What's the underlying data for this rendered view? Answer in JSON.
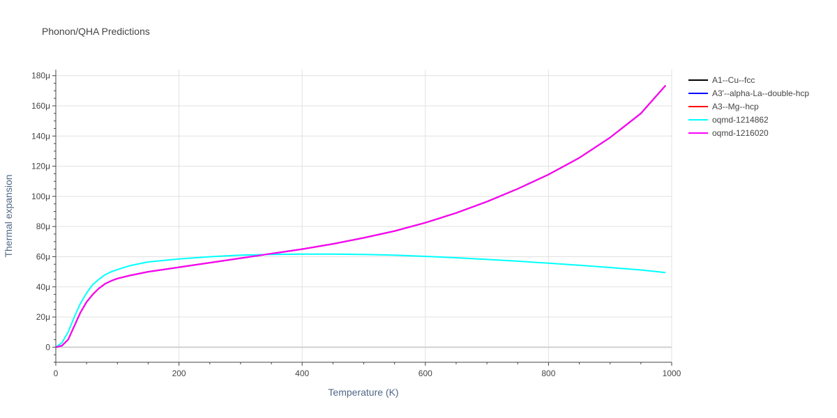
{
  "chart_data": {
    "type": "line",
    "title": "Phonon/QHA Predictions",
    "xlabel": "Temperature (K)",
    "ylabel": "Thermal expansion",
    "xlim": [
      0,
      1000
    ],
    "ylim": [
      -10,
      184
    ],
    "x_ticks": [
      "0",
      "200",
      "400",
      "600",
      "800",
      "1000"
    ],
    "y_ticks": [
      "0",
      "20μ",
      "40μ",
      "60μ",
      "80μ",
      "100μ",
      "120μ",
      "140μ",
      "160μ",
      "180μ"
    ],
    "grid": true,
    "legend_position": "right",
    "series": [
      {
        "name": "A1--Cu--fcc",
        "color": "#000000",
        "x": [
          0,
          10,
          20,
          30,
          40,
          50,
          60,
          70,
          80,
          90,
          100,
          120,
          150,
          200,
          250,
          300,
          350,
          400,
          450,
          500,
          550,
          600,
          650,
          700,
          750,
          800,
          850,
          900,
          950,
          990
        ],
        "y": [
          0,
          1,
          5,
          14,
          23,
          30,
          35,
          39,
          42,
          44,
          45.5,
          47.5,
          50,
          53,
          56,
          59,
          62,
          65,
          68.5,
          72.5,
          77,
          82.5,
          89,
          96.5,
          105,
          114.5,
          125.5,
          139,
          155,
          173.5
        ]
      },
      {
        "name": "A3'--alpha-La--double-hcp",
        "color": "#0000ff",
        "x": [
          0,
          10,
          20,
          30,
          40,
          50,
          60,
          70,
          80,
          90,
          100,
          120,
          150,
          200,
          250,
          300,
          350,
          400,
          450,
          500,
          550,
          600,
          650,
          700,
          750,
          800,
          850,
          900,
          950,
          990
        ],
        "y": [
          0,
          1,
          5,
          14,
          23,
          30,
          35,
          39,
          42,
          44,
          45.5,
          47.5,
          50,
          53,
          56,
          59,
          62,
          65,
          68.5,
          72.5,
          77,
          82.5,
          89,
          96.5,
          105,
          114.5,
          125.5,
          139,
          155,
          173.5
        ]
      },
      {
        "name": "A3--Mg--hcp",
        "color": "#ff0000",
        "x": [
          0,
          10,
          20,
          30,
          40,
          50,
          60,
          70,
          80,
          90,
          100,
          120,
          150,
          200,
          250,
          300,
          350,
          400,
          450,
          500,
          550,
          600,
          650,
          700,
          750,
          800,
          850,
          900,
          950,
          990
        ],
        "y": [
          0,
          1,
          5,
          14,
          23,
          30,
          35,
          39,
          42,
          44,
          45.5,
          47.5,
          50,
          53,
          56,
          59,
          62,
          65,
          68.5,
          72.5,
          77,
          82.5,
          89,
          96.5,
          105,
          114.5,
          125.5,
          139,
          155,
          173.5
        ]
      },
      {
        "name": "oqmd-1214862",
        "color": "#00ffff",
        "x": [
          0,
          10,
          20,
          30,
          40,
          50,
          60,
          70,
          80,
          90,
          100,
          120,
          150,
          200,
          250,
          300,
          350,
          400,
          450,
          500,
          550,
          600,
          650,
          700,
          750,
          800,
          850,
          900,
          950,
          990
        ],
        "y": [
          0,
          3,
          10,
          20,
          29,
          36,
          41.5,
          45,
          48,
          50,
          51.5,
          54,
          56.5,
          58.5,
          60,
          61,
          61.5,
          61.7,
          61.7,
          61.5,
          61,
          60.2,
          59.3,
          58.2,
          57,
          55.7,
          54.3,
          52.8,
          51.2,
          49.5
        ]
      },
      {
        "name": "oqmd-1216020",
        "color": "#ff00ff",
        "x": [
          0,
          10,
          20,
          30,
          40,
          50,
          60,
          70,
          80,
          90,
          100,
          120,
          150,
          200,
          250,
          300,
          350,
          400,
          450,
          500,
          550,
          600,
          650,
          700,
          750,
          800,
          850,
          900,
          950,
          990
        ],
        "y": [
          0,
          1,
          5,
          14,
          23,
          30,
          35,
          39,
          42,
          44,
          45.5,
          47.5,
          50,
          53,
          56,
          59,
          62,
          65,
          68.5,
          72.5,
          77,
          82.5,
          89,
          96.5,
          105,
          114.5,
          125.5,
          139,
          155,
          173.5
        ]
      }
    ]
  }
}
